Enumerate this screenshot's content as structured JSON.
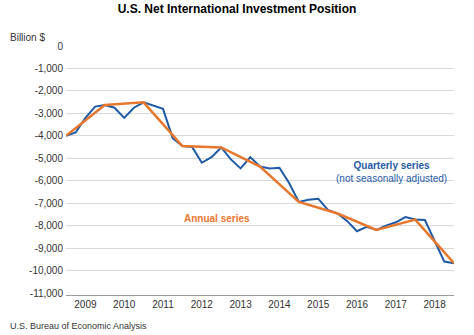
{
  "chart_data": {
    "type": "line",
    "title": "U.S. Net International Investment Position",
    "ylabel": "Billion $",
    "source": "U.S. Bureau of Economic Analysis",
    "grid": true,
    "xlim": [
      2009,
      2019
    ],
    "xticks": [
      {
        "value": 2009.5,
        "label": "2009"
      },
      {
        "value": 2010.5,
        "label": "2010"
      },
      {
        "value": 2011.5,
        "label": "2011"
      },
      {
        "value": 2012.5,
        "label": "2012"
      },
      {
        "value": 2013.5,
        "label": "2013"
      },
      {
        "value": 2014.5,
        "label": "2014"
      },
      {
        "value": 2015.5,
        "label": "2015"
      },
      {
        "value": 2016.5,
        "label": "2016"
      },
      {
        "value": 2017.5,
        "label": "2017"
      },
      {
        "value": 2018.5,
        "label": "2018"
      }
    ],
    "ylim": [
      -11000,
      0
    ],
    "yticks": [
      0,
      {
        "value": -1000,
        "label": "-1,000"
      },
      {
        "value": -2000,
        "label": "-2,000"
      },
      {
        "value": -3000,
        "label": "-3,000"
      },
      {
        "value": -4000,
        "label": "-4,000"
      },
      {
        "value": -5000,
        "label": "-5,000"
      },
      {
        "value": -6000,
        "label": "-6,000"
      },
      {
        "value": -7000,
        "label": "-7,000"
      },
      {
        "value": -8000,
        "label": "-8,000"
      },
      {
        "value": -9000,
        "label": "-9,000"
      },
      {
        "value": -10000,
        "label": "-10,000"
      },
      {
        "value": -11000,
        "label": "-11,000"
      }
    ],
    "series": [
      {
        "name": "Quarterly series (not seasonally adjusted)",
        "color": "#1f5aa6",
        "x": [
          2009,
          2009.25,
          2009.5,
          2009.75,
          2010,
          2010.25,
          2010.5,
          2010.75,
          2011,
          2011.25,
          2011.5,
          2011.75,
          2012,
          2012.25,
          2012.5,
          2012.75,
          2013,
          2013.25,
          2013.5,
          2013.75,
          2014,
          2014.25,
          2014.5,
          2014.75,
          2015,
          2015.25,
          2015.5,
          2015.75,
          2016,
          2016.25,
          2016.5,
          2016.75,
          2017,
          2017.25,
          2017.5,
          2017.75,
          2018,
          2018.25,
          2018.5,
          2018.75,
          2019
        ],
        "values": [
          -4000,
          -3850,
          -3200,
          -2700,
          -2630,
          -2750,
          -3200,
          -2750,
          -2510,
          -2650,
          -2800,
          -4100,
          -4455,
          -4500,
          -5200,
          -4950,
          -4520,
          -5050,
          -5450,
          -4950,
          -5370,
          -5450,
          -5420,
          -6100,
          -6945,
          -6850,
          -6800,
          -7300,
          -7460,
          -7800,
          -8250,
          -8050,
          -8190,
          -8000,
          -7850,
          -7620,
          -7730,
          -7750,
          -8700,
          -9600,
          -9675
        ]
      },
      {
        "name": "Annual series",
        "color": "#e8772e",
        "x": [
          2009,
          2010,
          2011,
          2012,
          2013,
          2014,
          2015,
          2016,
          2017,
          2018,
          2019
        ],
        "values": [
          -4000,
          -2630,
          -2510,
          -4455,
          -4520,
          -5370,
          -6945,
          -7460,
          -8190,
          -7730,
          -9675
        ]
      }
    ]
  }
}
